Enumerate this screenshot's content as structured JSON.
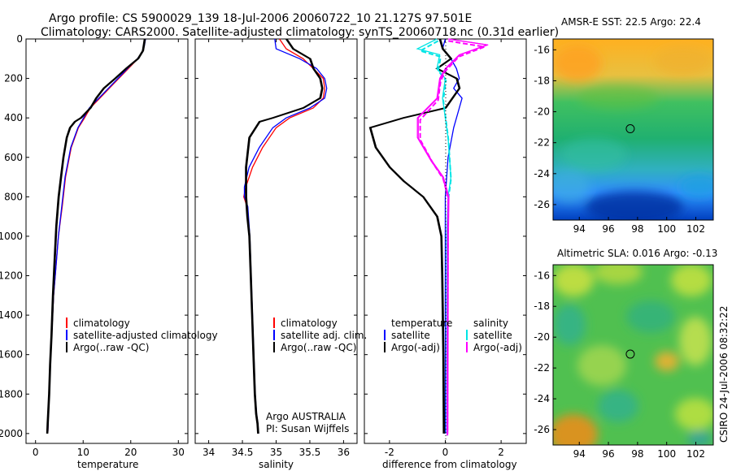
{
  "figure": {
    "title_line1": "Argo profile: CS 5900029_139 18-Jul-2006 20060722_10 21.127S 97.501E",
    "title_line2": "Climatology: CARS2000. Satellite-adjusted climatology: synTS_20060718.nc (0.31d earlier)",
    "side_text": "CSIRO 24-Jul-2006 08:32:22",
    "credit_line1": "Argo AUSTRALIA",
    "credit_line2": "PI: Susan Wijffels"
  },
  "colors": {
    "climatology": "#ff0000",
    "satellite": "#0000ff",
    "argo": "#000000",
    "cyan": "#00e5e5",
    "magenta": "#ff00ff"
  },
  "chart_data": [
    {
      "id": "temperature",
      "type": "line",
      "xlabel": "temperature",
      "ylim": [
        2050,
        0
      ],
      "xlim": [
        -2,
        32
      ],
      "yticks": [
        0,
        200,
        400,
        600,
        800,
        1000,
        1200,
        1400,
        1600,
        1800,
        2000
      ],
      "xticks": [
        0,
        10,
        20,
        30
      ],
      "legend": [
        "climatology",
        "satellite-adjusted climatology",
        "Argo(..raw -QC)"
      ],
      "series": [
        {
          "name": "climatology",
          "color": "#ff0000",
          "x": [
            23,
            22.8,
            22.5,
            21.5,
            19.5,
            17.5,
            15.5,
            13.5,
            11.5,
            10.3,
            9,
            7.5,
            6.3,
            5.6,
            4.8,
            4.3,
            3.8,
            3.5,
            3.2,
            3.0,
            2.9,
            2.7,
            2.6
          ],
          "y": [
            0,
            30,
            60,
            100,
            150,
            200,
            250,
            300,
            350,
            400,
            450,
            550,
            700,
            850,
            1000,
            1150,
            1300,
            1450,
            1600,
            1700,
            1800,
            1900,
            1990
          ]
        },
        {
          "name": "satellite-adjusted climatology",
          "color": "#0000ff",
          "x": [
            23.1,
            22.9,
            22.6,
            21.4,
            19.3,
            17.3,
            15.3,
            13.3,
            11.3,
            10.1,
            8.9,
            7.4,
            6.2,
            5.5,
            4.8,
            4.3,
            3.8,
            3.5,
            3.2,
            3.0,
            2.9,
            2.7,
            2.6
          ],
          "y": [
            0,
            30,
            60,
            100,
            150,
            200,
            250,
            300,
            350,
            400,
            450,
            550,
            700,
            850,
            1000,
            1150,
            1300,
            1450,
            1600,
            1700,
            1800,
            1900,
            1990
          ]
        },
        {
          "name": "Argo(..raw -QC)",
          "color": "#000000",
          "x": [
            22.9,
            22.7,
            22.5,
            21.5,
            19.0,
            16.7,
            14.3,
            12.7,
            11.5,
            9.5,
            8.2,
            7.2,
            6.5,
            5.8,
            5.3,
            4.8,
            4.3,
            4.0,
            3.6,
            3.3,
            3.0,
            2.8,
            2.6,
            2.5,
            2.4
          ],
          "y": [
            0,
            30,
            60,
            100,
            150,
            200,
            250,
            300,
            350,
            400,
            420,
            450,
            500,
            600,
            700,
            800,
            950,
            1100,
            1300,
            1500,
            1650,
            1800,
            1900,
            1950,
            2000
          ]
        }
      ]
    },
    {
      "id": "salinity",
      "type": "line",
      "xlabel": "salinity",
      "ylim": [
        2050,
        0
      ],
      "xlim": [
        33.8,
        36.2
      ],
      "yticks": [
        0,
        200,
        400,
        600,
        800,
        1000,
        1200,
        1400,
        1600,
        1800,
        2000
      ],
      "xticks": [
        34,
        34.5,
        35,
        35.5,
        36
      ],
      "legend": [
        "climatology",
        "satellite adj. clim.",
        "Argo(..raw -QC)"
      ],
      "series": [
        {
          "name": "climatology",
          "color": "#ff0000",
          "x": [
            35.05,
            35.15,
            35.4,
            35.55,
            35.7,
            35.72,
            35.7,
            35.55,
            35.2,
            35.0,
            34.8,
            34.65,
            34.55,
            34.52,
            34.57,
            34.6,
            34.62,
            34.64,
            34.66,
            34.68,
            34.7,
            34.72,
            34.73
          ],
          "y": [
            0,
            50,
            100,
            150,
            200,
            250,
            300,
            350,
            400,
            450,
            550,
            650,
            750,
            800,
            850,
            1000,
            1200,
            1400,
            1600,
            1800,
            1900,
            1950,
            2000
          ]
        },
        {
          "name": "satellite adj. clim.",
          "color": "#0000ff",
          "x": [
            34.98,
            35.0,
            35.35,
            35.6,
            35.72,
            35.75,
            35.72,
            35.5,
            35.15,
            34.95,
            34.75,
            34.6,
            34.53,
            34.53,
            34.58,
            34.61,
            34.63,
            34.65,
            34.67,
            34.69,
            34.71,
            34.73,
            34.74
          ],
          "y": [
            0,
            50,
            100,
            150,
            200,
            250,
            300,
            350,
            400,
            450,
            550,
            650,
            750,
            800,
            850,
            1000,
            1200,
            1400,
            1600,
            1800,
            1900,
            1950,
            2000
          ]
        },
        {
          "name": "Argo(..raw -QC)",
          "color": "#000000",
          "x": [
            35.15,
            35.25,
            35.5,
            35.55,
            35.65,
            35.68,
            35.65,
            35.4,
            34.95,
            34.75,
            34.6,
            34.55,
            34.55,
            34.57,
            34.6,
            34.62,
            34.64,
            34.66,
            34.68,
            34.7,
            34.72,
            34.73
          ],
          "y": [
            0,
            50,
            100,
            150,
            200,
            250,
            300,
            350,
            400,
            420,
            500,
            650,
            800,
            900,
            1000,
            1200,
            1400,
            1600,
            1800,
            1900,
            1950,
            2000
          ]
        }
      ]
    },
    {
      "id": "difference",
      "type": "line",
      "xlabel": "difference from climatology",
      "ylim": [
        2050,
        0
      ],
      "xlim": [
        -2.9,
        2.9
      ],
      "yticks": [
        0,
        200,
        400,
        600,
        800,
        1000,
        1200,
        1400,
        1600,
        1800,
        2000
      ],
      "xticks": [
        -2,
        0,
        2
      ],
      "legend": [
        "temperature",
        "satellite",
        "Argo(-adj)",
        "salinity",
        "satellite",
        "Argo(-adj)"
      ],
      "series": [
        {
          "name": "temperature satellite",
          "color": "#0000ff",
          "x": [
            0,
            -0.1,
            0.2,
            0.4,
            0.5,
            0.3,
            0.6,
            0.5,
            0.3,
            0.1,
            0,
            0
          ],
          "y": [
            0,
            50,
            100,
            150,
            200,
            250,
            300,
            350,
            450,
            600,
            800,
            2000
          ]
        },
        {
          "name": "temperature Argo(-adj)",
          "color": "#000000",
          "x": [
            -0.2,
            -0.1,
            0.2,
            -0.3,
            0.4,
            0.5,
            0.0,
            -1.5,
            -2.7,
            -2.5,
            -2.0,
            -1.5,
            -0.8,
            -0.3,
            -0.15,
            -0.12,
            -0.1,
            -0.08,
            -0.07,
            -0.06
          ],
          "y": [
            0,
            50,
            100,
            150,
            200,
            250,
            350,
            400,
            450,
            550,
            650,
            720,
            800,
            900,
            1000,
            1200,
            1400,
            1600,
            1800,
            2000
          ]
        },
        {
          "name": "salinity satellite",
          "color": "#00e5e5",
          "x": [
            -0.3,
            -1.0,
            -0.2,
            -0.3,
            0.0,
            -0.1,
            0.0,
            0.1,
            0.2,
            0.1,
            0.05,
            0.05
          ],
          "y": [
            0,
            50,
            80,
            150,
            200,
            300,
            400,
            500,
            700,
            800,
            1000,
            2000
          ]
        },
        {
          "name": "salinity Argo(-adj)",
          "color": "#ff00ff",
          "x": [
            0.1,
            1.5,
            0.5,
            0.0,
            -0.2,
            -0.3,
            -1.0,
            -1.0,
            -0.5,
            -0.1,
            0.1,
            0.08,
            0.07,
            0.06
          ],
          "y": [
            0,
            30,
            80,
            150,
            200,
            300,
            400,
            500,
            620,
            700,
            800,
            1000,
            1500,
            2000
          ]
        }
      ]
    },
    {
      "id": "sst_map",
      "type": "heatmap",
      "title": "AMSR-E SST: 22.5 Argo: 22.4",
      "xticks": [
        94,
        96,
        98,
        100,
        102
      ],
      "yticks": [
        -16,
        -18,
        -20,
        -22,
        -24,
        -26
      ],
      "xlim": [
        92.2,
        103.2
      ],
      "ylim": [
        -27,
        -15.3
      ],
      "marker": {
        "lon": 97.5,
        "lat": -21.1
      }
    },
    {
      "id": "sla_map",
      "type": "heatmap",
      "title": "Altimetric SLA: 0.016 Argo: -0.13",
      "xticks": [
        94,
        96,
        98,
        100,
        102
      ],
      "yticks": [
        -16,
        -18,
        -20,
        -22,
        -24,
        -26
      ],
      "xlim": [
        92.2,
        103.2
      ],
      "ylim": [
        -27,
        -15.3
      ],
      "marker": {
        "lon": 97.5,
        "lat": -21.1
      }
    }
  ]
}
